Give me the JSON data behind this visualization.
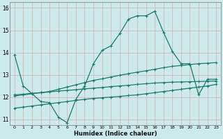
{
  "xlabel": "Humidex (Indice chaleur)",
  "bg_color": "#cdeaea",
  "grid_color": "#d4b8b8",
  "line_color": "#1a7a6a",
  "xlim": [
    -0.5,
    23.5
  ],
  "ylim": [
    10.75,
    16.25
  ],
  "xtick_labels": [
    "0",
    "1",
    "2",
    "3",
    "4",
    "5",
    "6",
    "7",
    "8",
    "9",
    "10",
    "11",
    "12",
    "13",
    "14",
    "15",
    "16",
    "17",
    "18",
    "19",
    "20",
    "21",
    "22",
    "23"
  ],
  "xtick_vals": [
    0,
    1,
    2,
    3,
    4,
    5,
    6,
    7,
    8,
    9,
    10,
    11,
    12,
    13,
    14,
    15,
    16,
    17,
    18,
    19,
    20,
    21,
    22,
    23
  ],
  "ytick_vals": [
    11,
    12,
    13,
    14,
    15,
    16
  ],
  "series1_x": [
    0,
    1,
    3,
    4,
    5,
    6,
    7,
    8,
    9,
    10,
    11,
    12,
    13,
    14,
    15,
    16,
    17,
    18,
    19,
    20,
    21,
    22,
    23
  ],
  "series1_y": [
    13.9,
    12.5,
    11.8,
    11.75,
    11.1,
    10.85,
    11.9,
    12.5,
    13.5,
    14.1,
    14.3,
    14.85,
    15.5,
    15.65,
    15.65,
    15.85,
    14.9,
    14.05,
    13.5,
    13.5,
    12.1,
    12.8,
    12.8
  ],
  "series2_x": [
    0,
    1,
    2,
    3,
    4,
    5,
    6,
    7,
    8,
    9,
    10,
    11,
    12,
    13,
    14,
    15,
    16,
    17,
    18,
    19,
    20,
    21,
    22,
    23
  ],
  "series2_y": [
    12.05,
    12.1,
    12.15,
    12.2,
    12.25,
    12.35,
    12.45,
    12.55,
    12.65,
    12.75,
    12.82,
    12.9,
    12.98,
    13.05,
    13.12,
    13.18,
    13.25,
    13.32,
    13.38,
    13.42,
    13.46,
    13.5,
    13.52,
    13.55
  ],
  "series3_x": [
    0,
    1,
    2,
    3,
    4,
    5,
    6,
    7,
    8,
    9,
    10,
    11,
    12,
    13,
    14,
    15,
    16,
    17,
    18,
    19,
    20,
    21,
    22,
    23
  ],
  "series3_y": [
    12.1,
    12.13,
    12.17,
    12.2,
    12.23,
    12.27,
    12.3,
    12.33,
    12.37,
    12.4,
    12.43,
    12.47,
    12.5,
    12.53,
    12.57,
    12.6,
    12.63,
    12.65,
    12.67,
    12.68,
    12.69,
    12.7,
    12.71,
    12.72
  ],
  "series4_x": [
    0,
    1,
    2,
    3,
    4,
    5,
    6,
    7,
    8,
    9,
    10,
    11,
    12,
    13,
    14,
    15,
    16,
    17,
    18,
    19,
    20,
    21,
    22,
    23
  ],
  "series4_y": [
    11.5,
    11.55,
    11.6,
    11.65,
    11.7,
    11.75,
    11.8,
    11.85,
    11.9,
    11.94,
    11.97,
    12.0,
    12.03,
    12.07,
    12.1,
    12.15,
    12.2,
    12.25,
    12.3,
    12.35,
    12.4,
    12.45,
    12.5,
    12.57
  ]
}
